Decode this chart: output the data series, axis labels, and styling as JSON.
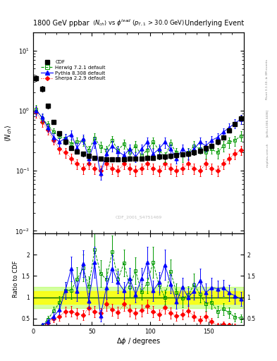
{
  "title_left": "1800 GeV ppbar",
  "title_right": "Underlying Event",
  "subtitle": "$\\langle N_{ch}\\rangle$ vs $\\phi^{lead}$ ($p_{T,1}$ > 30.0 GeV)",
  "xlabel": "$\\Delta\\phi$ / degrees",
  "ylabel_main": "$\\langle N_{ch}\\rangle$",
  "ylabel_ratio": "Ratio to CDF",
  "watermark": "CDF_2001_S4751469",
  "rivet_text": "Rivet 3.1.10, ≥ 3M events",
  "arxiv_text": "[arXiv:1306.3436]",
  "mcplots_text": "mcplots.cern.ch",
  "xlim": [
    0,
    180
  ],
  "ylim_main": [
    0.009,
    20
  ],
  "ylim_ratio": [
    0.35,
    2.5
  ],
  "background_color": "#ffffff",
  "cdf_color": "#000000",
  "herwig_color": "#009900",
  "pythia_color": "#0000ff",
  "sherpa_color": "#ff0000",
  "legend_entries": [
    "CDF",
    "Herwig 7.2.1 default",
    "Pythia 8.308 default",
    "Sherpa 2.2.9 default"
  ],
  "dphi_cdf": [
    2.5,
    7.5,
    12.5,
    17.5,
    22.5,
    27.5,
    32.5,
    37.5,
    42.5,
    47.5,
    52.5,
    57.5,
    62.5,
    67.5,
    72.5,
    77.5,
    82.5,
    87.5,
    92.5,
    97.5,
    102.5,
    107.5,
    112.5,
    117.5,
    122.5,
    127.5,
    132.5,
    137.5,
    142.5,
    147.5,
    152.5,
    157.5,
    162.5,
    167.5,
    172.5,
    177.5
  ],
  "nch_cdf": [
    3.5,
    2.3,
    1.2,
    0.65,
    0.42,
    0.3,
    0.24,
    0.21,
    0.19,
    0.175,
    0.165,
    0.16,
    0.155,
    0.155,
    0.155,
    0.155,
    0.16,
    0.16,
    0.16,
    0.165,
    0.165,
    0.17,
    0.17,
    0.175,
    0.18,
    0.185,
    0.19,
    0.2,
    0.215,
    0.235,
    0.26,
    0.3,
    0.36,
    0.47,
    0.6,
    0.75
  ],
  "nch_cdf_err": [
    0.4,
    0.25,
    0.12,
    0.06,
    0.04,
    0.025,
    0.02,
    0.018,
    0.016,
    0.015,
    0.014,
    0.013,
    0.013,
    0.013,
    0.013,
    0.013,
    0.013,
    0.013,
    0.013,
    0.014,
    0.014,
    0.014,
    0.014,
    0.015,
    0.015,
    0.015,
    0.016,
    0.017,
    0.018,
    0.02,
    0.022,
    0.025,
    0.03,
    0.04,
    0.055,
    0.07
  ],
  "dphi_mc": [
    2.5,
    7.5,
    12.5,
    17.5,
    22.5,
    27.5,
    32.5,
    37.5,
    42.5,
    47.5,
    52.5,
    57.5,
    62.5,
    67.5,
    72.5,
    77.5,
    82.5,
    87.5,
    92.5,
    97.5,
    102.5,
    107.5,
    112.5,
    117.5,
    122.5,
    127.5,
    132.5,
    137.5,
    142.5,
    147.5,
    152.5,
    157.5,
    162.5,
    167.5,
    172.5,
    177.5
  ],
  "herwig_nch": [
    1.05,
    0.75,
    0.58,
    0.44,
    0.37,
    0.35,
    0.28,
    0.3,
    0.32,
    0.22,
    0.35,
    0.25,
    0.22,
    0.32,
    0.22,
    0.28,
    0.2,
    0.26,
    0.18,
    0.22,
    0.3,
    0.22,
    0.17,
    0.28,
    0.2,
    0.18,
    0.2,
    0.26,
    0.23,
    0.2,
    0.23,
    0.2,
    0.26,
    0.3,
    0.32,
    0.38
  ],
  "herwig_err": [
    0.18,
    0.12,
    0.09,
    0.07,
    0.06,
    0.06,
    0.05,
    0.06,
    0.06,
    0.04,
    0.07,
    0.05,
    0.04,
    0.06,
    0.04,
    0.05,
    0.04,
    0.05,
    0.03,
    0.04,
    0.06,
    0.04,
    0.03,
    0.05,
    0.04,
    0.04,
    0.04,
    0.05,
    0.04,
    0.04,
    0.04,
    0.04,
    0.05,
    0.06,
    0.06,
    0.07
  ],
  "pythia_nch": [
    1.0,
    0.78,
    0.52,
    0.36,
    0.3,
    0.35,
    0.4,
    0.24,
    0.34,
    0.16,
    0.3,
    0.09,
    0.19,
    0.26,
    0.21,
    0.18,
    0.23,
    0.17,
    0.23,
    0.3,
    0.19,
    0.23,
    0.3,
    0.23,
    0.16,
    0.23,
    0.19,
    0.23,
    0.3,
    0.26,
    0.32,
    0.36,
    0.44,
    0.52,
    0.62,
    0.72
  ],
  "pythia_err": [
    0.18,
    0.12,
    0.08,
    0.06,
    0.05,
    0.06,
    0.07,
    0.05,
    0.06,
    0.03,
    0.06,
    0.02,
    0.04,
    0.05,
    0.04,
    0.03,
    0.04,
    0.03,
    0.04,
    0.06,
    0.04,
    0.04,
    0.06,
    0.04,
    0.03,
    0.04,
    0.04,
    0.04,
    0.06,
    0.05,
    0.06,
    0.06,
    0.07,
    0.09,
    0.11,
    0.13
  ],
  "sherpa_nch": [
    0.95,
    0.65,
    0.48,
    0.32,
    0.23,
    0.2,
    0.16,
    0.13,
    0.11,
    0.13,
    0.11,
    0.1,
    0.13,
    0.11,
    0.1,
    0.13,
    0.11,
    0.1,
    0.11,
    0.13,
    0.11,
    0.1,
    0.13,
    0.11,
    0.1,
    0.11,
    0.13,
    0.11,
    0.1,
    0.13,
    0.11,
    0.1,
    0.13,
    0.16,
    0.19,
    0.22
  ],
  "sherpa_err": [
    0.18,
    0.12,
    0.08,
    0.05,
    0.04,
    0.035,
    0.03,
    0.025,
    0.022,
    0.025,
    0.022,
    0.02,
    0.025,
    0.022,
    0.02,
    0.025,
    0.022,
    0.02,
    0.022,
    0.025,
    0.022,
    0.02,
    0.025,
    0.022,
    0.02,
    0.022,
    0.025,
    0.022,
    0.02,
    0.025,
    0.022,
    0.02,
    0.025,
    0.03,
    0.035,
    0.04
  ]
}
